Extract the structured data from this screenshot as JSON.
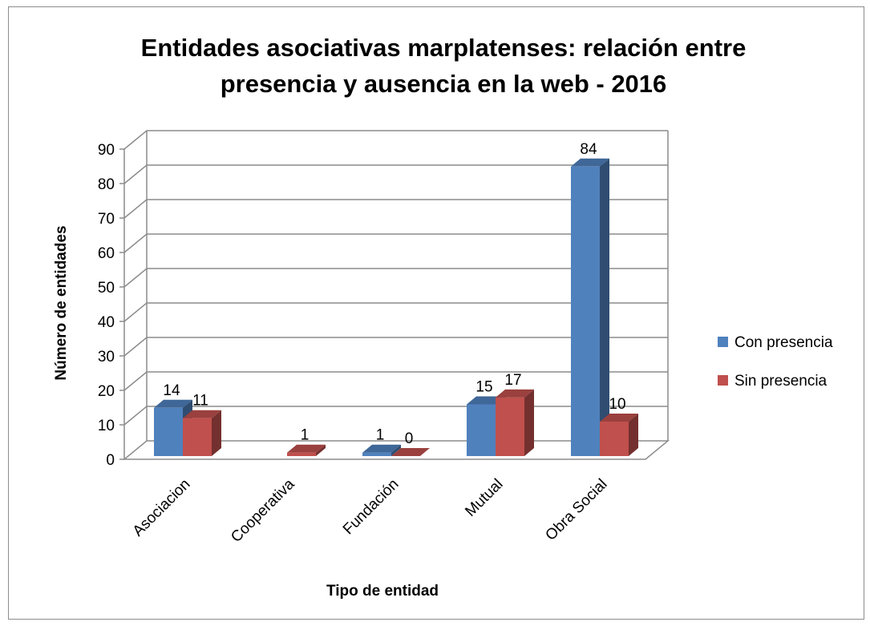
{
  "chart_data": {
    "type": "bar",
    "title_line1": "Entidades asociativas marplatenses: relación entre",
    "title_line2": "presencia y ausencia en la web - 2016",
    "xlabel": "Tipo de entidad",
    "ylabel": "Número de entidades",
    "ylim": [
      0,
      90
    ],
    "ytick_step": 10,
    "yticks": [
      "0",
      "10",
      "20",
      "30",
      "40",
      "50",
      "60",
      "70",
      "80",
      "90"
    ],
    "grid": true,
    "legend_position": "right",
    "categories": [
      "Asociacion",
      "Cooperativa",
      "Fundación",
      "Mutual",
      "Obra Social"
    ],
    "series": [
      {
        "name": "Con presencia",
        "color": "#4f81bd",
        "values": [
          14,
          null,
          1,
          15,
          84
        ]
      },
      {
        "name": "Sin presencia",
        "color": "#c0504d",
        "values": [
          11,
          1,
          0,
          17,
          10
        ]
      }
    ]
  }
}
